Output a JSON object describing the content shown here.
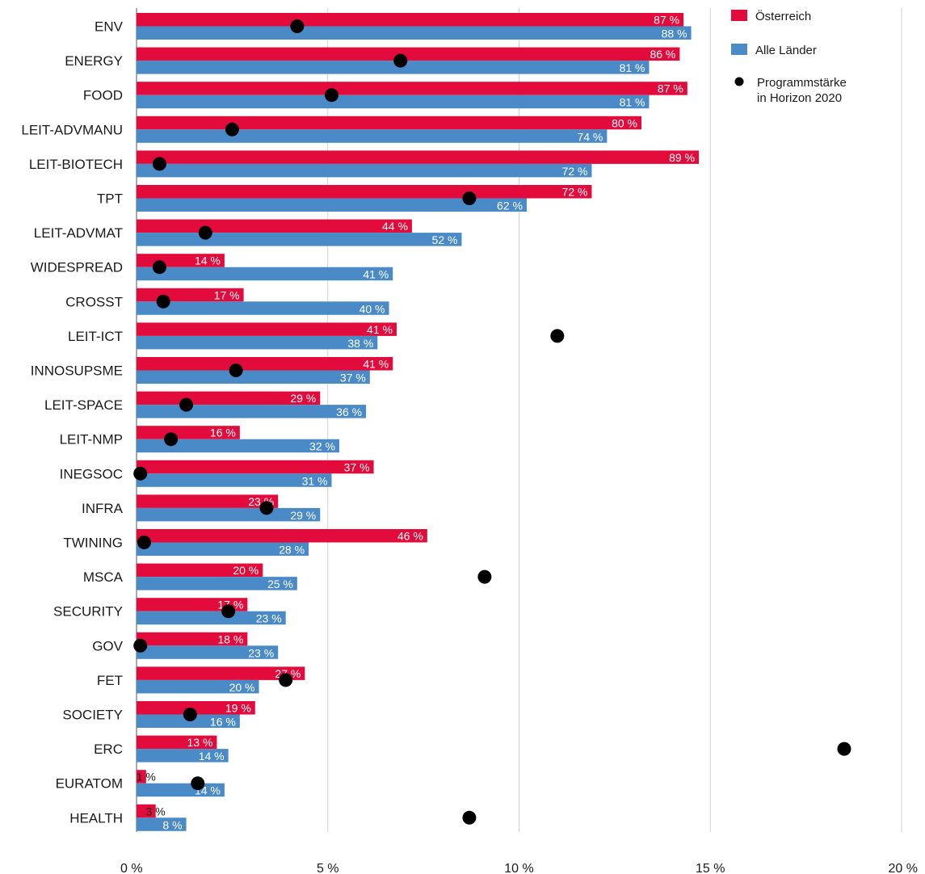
{
  "chart_data": {
    "type": "bar",
    "orientation": "horizontal",
    "x_unit": "%",
    "xlim": [
      0,
      20
    ],
    "x_ticks": [
      {
        "value": 0,
        "label": "0 %"
      },
      {
        "value": 5,
        "label": "5 %"
      },
      {
        "value": 10,
        "label": "10 %"
      },
      {
        "value": 15,
        "label": "15 %"
      },
      {
        "value": 20,
        "label": "20 %"
      }
    ],
    "grid": "vertical",
    "legend_position": "top-right",
    "categories": [
      "ENV",
      "ENERGY",
      "FOOD",
      "LEIT-ADVMANU",
      "LEIT-BIOTECH",
      "TPT",
      "LEIT-ADVMAT",
      "WIDESPREAD",
      "CROSST",
      "LEIT-ICT",
      "INNOSUPSME",
      "LEIT-SPACE",
      "LEIT-NMP",
      "INEGSOC",
      "INFRA",
      "TWINING",
      "MSCA",
      "SECURITY",
      "GOV",
      "FET",
      "SOCIETY",
      "ERC",
      "EURATOM",
      "HEALTH"
    ],
    "series": [
      {
        "name": "Österreich",
        "color": "#e30b3b",
        "values": [
          14.3,
          14.2,
          14.4,
          13.2,
          14.7,
          11.9,
          7.2,
          2.3,
          2.8,
          6.8,
          6.7,
          4.8,
          2.7,
          6.2,
          3.7,
          7.6,
          3.3,
          2.9,
          2.9,
          4.4,
          3.1,
          2.1,
          0.25,
          0.5
        ],
        "labels": [
          "87 %",
          "86 %",
          "87 %",
          "80 %",
          "89 %",
          "72 %",
          "44 %",
          "14 %",
          "17 %",
          "41 %",
          "41 %",
          "29 %",
          "16 %",
          "37 %",
          "23 %",
          "46 %",
          "20 %",
          "17 %",
          "18 %",
          "27 %",
          "19 %",
          "13 %",
          "1 %",
          "3 %"
        ]
      },
      {
        "name": "Alle Länder",
        "color": "#4a8bc7",
        "values": [
          14.5,
          13.4,
          13.4,
          12.3,
          11.9,
          10.2,
          8.5,
          6.7,
          6.6,
          6.3,
          6.1,
          6.0,
          5.3,
          5.1,
          4.8,
          4.5,
          4.2,
          3.9,
          3.7,
          3.2,
          2.7,
          2.4,
          2.3,
          1.3
        ],
        "labels": [
          "88 %",
          "81 %",
          "81 %",
          "74 %",
          "72 %",
          "62 %",
          "52 %",
          "41 %",
          "40 %",
          "38 %",
          "37 %",
          "36 %",
          "32 %",
          "31 %",
          "29 %",
          "28 %",
          "25 %",
          "23 %",
          "23 %",
          "20 %",
          "16 %",
          "14 %",
          "14 %",
          "8 %"
        ]
      },
      {
        "name": "Programmstärke in Horizon 2020",
        "name_lines": [
          "Programmstärke",
          "in Horizon 2020"
        ],
        "color": "#000000",
        "marker": "dot",
        "values": [
          4.2,
          6.9,
          5.1,
          2.5,
          0.6,
          8.7,
          1.8,
          0.6,
          0.7,
          11.0,
          2.6,
          1.3,
          0.9,
          0.1,
          3.4,
          0.2,
          9.1,
          2.4,
          0.1,
          3.9,
          1.4,
          18.5,
          1.6,
          8.7
        ]
      }
    ]
  }
}
